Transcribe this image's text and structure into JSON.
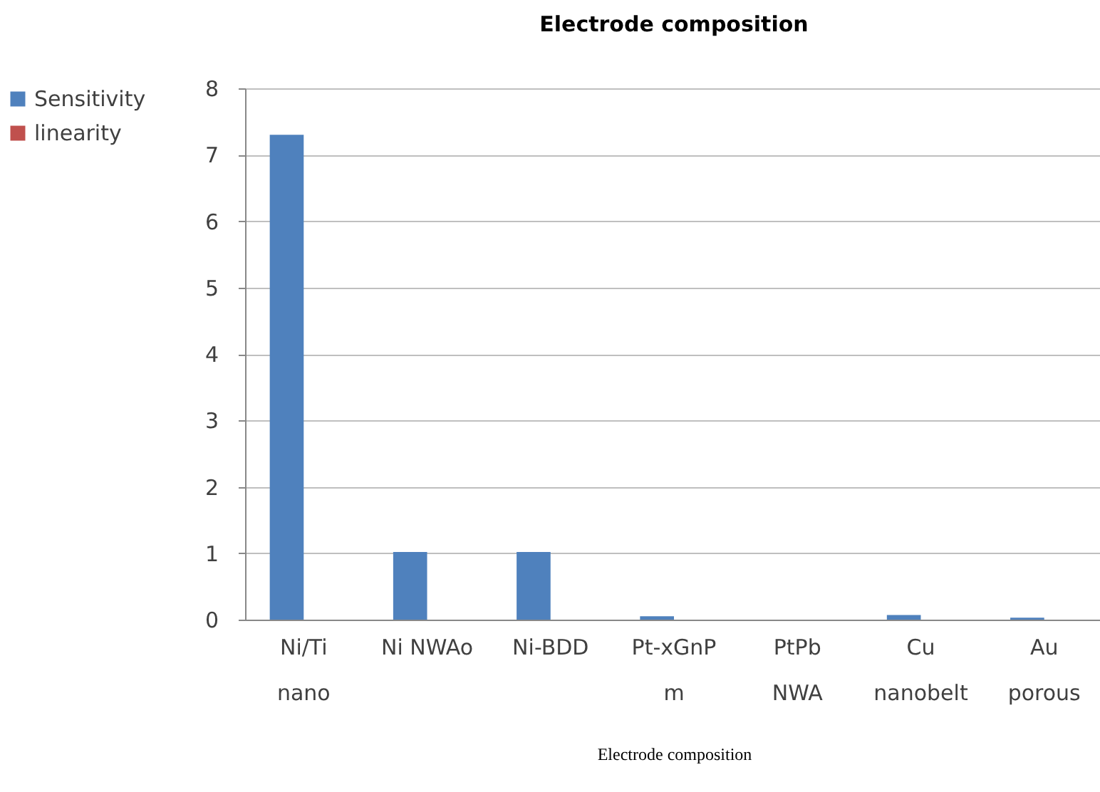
{
  "chart_data": {
    "type": "bar",
    "title": "Electrode composition",
    "xlabel": "Electrode composition",
    "categories": [
      "Ni/Ti\nnano",
      "Ni NWAo",
      "Ni-BDD",
      "Pt-xGnP\nm",
      "PtPb\nNWA",
      "Cu\nnanobelt",
      "Au\nporous"
    ],
    "series": [
      {
        "name": "Sensitivity",
        "color": "#4f81bd",
        "values": [
          7.3,
          1.02,
          1.02,
          0.05,
          0,
          0.07,
          0.03
        ]
      },
      {
        "name": "linearity",
        "color": "#c0504d",
        "values": [
          null,
          null,
          null,
          null,
          null,
          null,
          null
        ]
      }
    ],
    "ylim": [
      0,
      8
    ],
    "yticks": [
      0,
      1,
      2,
      3,
      4,
      5,
      6,
      7,
      8
    ],
    "grid": "y",
    "legend": "left"
  }
}
